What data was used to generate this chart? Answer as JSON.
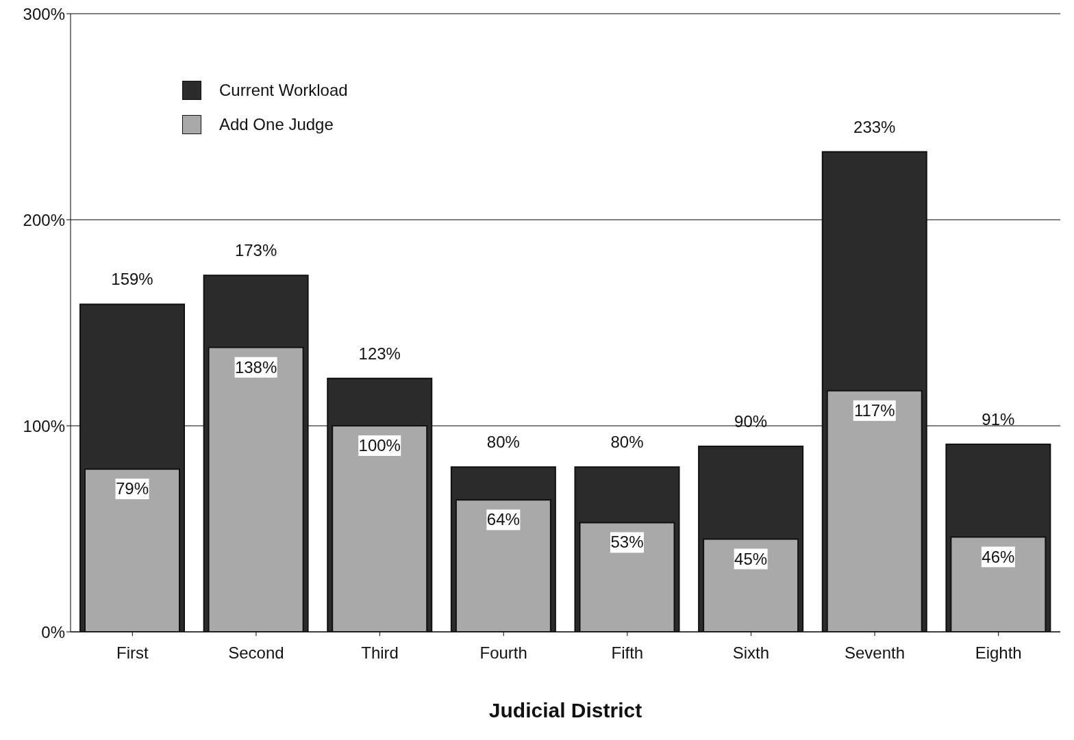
{
  "chart_data": {
    "type": "bar",
    "xlabel": "Judicial  District",
    "categories": [
      "First",
      "Second",
      "Third",
      "Fourth",
      "Fifth",
      "Sixth",
      "Seventh",
      "Eighth"
    ],
    "series": [
      {
        "name": "Current Workload",
        "color": "#2b2b2b",
        "values": [
          159,
          173,
          123,
          80,
          80,
          90,
          233,
          91
        ],
        "value_labels": [
          "159%",
          "173%",
          "123%",
          "80%",
          "80%",
          "90%",
          "233%",
          "91%"
        ]
      },
      {
        "name": "Add One Judge",
        "color": "#a9a9a9",
        "values": [
          79,
          138,
          100,
          64,
          53,
          45,
          117,
          46
        ],
        "value_labels": [
          "79%",
          "138%",
          "100%",
          "64%",
          "53%",
          "45%",
          "117%",
          "46%"
        ]
      }
    ],
    "ylim": [
      0,
      300
    ],
    "yticks": [
      {
        "value": 0,
        "label": "0%"
      },
      {
        "value": 100,
        "label": "100%"
      },
      {
        "value": 200,
        "label": "200%"
      },
      {
        "value": 300,
        "label": "300%"
      }
    ],
    "grid": "y",
    "legend": "top left"
  }
}
